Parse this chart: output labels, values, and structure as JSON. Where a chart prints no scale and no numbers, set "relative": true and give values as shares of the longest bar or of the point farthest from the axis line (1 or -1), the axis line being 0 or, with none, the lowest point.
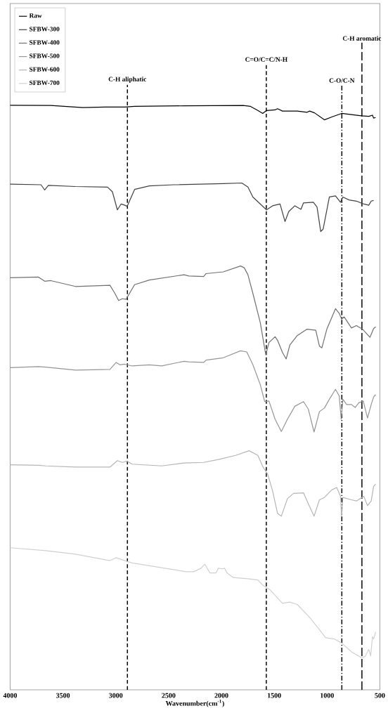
{
  "chart_data": {
    "type": "line",
    "relative": true,
    "xlabel": "Wavenumber(cm$^{-1}$)",
    "xlim": [
      4000,
      500
    ],
    "xticks": [
      4000,
      3500,
      3000,
      2500,
      2000,
      1500,
      1000,
      500
    ],
    "legend": "top left",
    "series": [
      {
        "name": "Raw",
        "color": "#000000",
        "x": [
          4000,
          3615,
          3312,
          3102,
          2915,
          2822,
          2355,
          1795,
          1725,
          1655,
          1609,
          1573,
          1492,
          1469,
          1422,
          1282,
          1189,
          1165,
          1119,
          1025,
          955,
          862,
          769,
          675,
          605,
          570,
          559,
          540
        ],
        "values": [
          1.0,
          0.9996,
          0.996,
          0.997,
          0.997,
          0.998,
          0.999,
          0.9996,
          0.998,
          0.991,
          0.986,
          0.991,
          0.992,
          0.994,
          0.99,
          0.99,
          0.988,
          0.99,
          0.987,
          0.975,
          0.98,
          0.986,
          0.984,
          0.982,
          0.981,
          0.983,
          0.978,
          0.979
        ]
      },
      {
        "name": "SFBW-300",
        "color": "#404040",
        "x": [
          4000,
          3708,
          3673,
          3638,
          3382,
          3078,
          3032,
          2985,
          2950,
          2915,
          2892,
          2822,
          2682,
          2448,
          1982,
          1807,
          1749,
          1702,
          1573,
          1515,
          1445,
          1398,
          1363,
          1305,
          1247,
          1223,
          1130,
          1095,
          1060,
          1037,
          978,
          920,
          873,
          850,
          792,
          722,
          652,
          605,
          582,
          559
        ],
        "values": [
          0.865,
          0.864,
          0.855,
          0.863,
          0.861,
          0.86,
          0.852,
          0.821,
          0.831,
          0.829,
          0.827,
          0.856,
          0.862,
          0.864,
          0.866,
          0.867,
          0.86,
          0.843,
          0.821,
          0.828,
          0.831,
          0.801,
          0.818,
          0.828,
          0.822,
          0.833,
          0.834,
          0.826,
          0.784,
          0.788,
          0.843,
          0.845,
          0.834,
          0.843,
          0.838,
          0.836,
          0.831,
          0.829,
          0.836,
          0.837
        ]
      },
      {
        "name": "SFBW-400",
        "color": "#707070",
        "x": [
          4000,
          3732,
          3673,
          3615,
          3382,
          3055,
          3008,
          2973,
          2938,
          2903,
          2822,
          2682,
          2355,
          2308,
          2168,
          2145,
          1982,
          1819,
          1784,
          1749,
          1702,
          1632,
          1580,
          1550,
          1492,
          1469,
          1422,
          1387,
          1352,
          1282,
          1189,
          1107,
          1072,
          1049,
          1002,
          920,
          885,
          862,
          838,
          769,
          722,
          664,
          594,
          559,
          540
        ],
        "values": [
          0.705,
          0.706,
          0.699,
          0.7,
          0.69,
          0.692,
          0.678,
          0.666,
          0.669,
          0.668,
          0.693,
          0.701,
          0.71,
          0.708,
          0.707,
          0.712,
          0.715,
          0.725,
          0.722,
          0.71,
          0.678,
          0.628,
          0.573,
          0.594,
          0.604,
          0.598,
          0.577,
          0.566,
          0.59,
          0.606,
          0.617,
          0.615,
          0.588,
          0.585,
          0.617,
          0.652,
          0.644,
          0.634,
          0.638,
          0.619,
          0.623,
          0.617,
          0.603,
          0.618,
          0.621
        ]
      },
      {
        "name": "SFBW-500",
        "color": "#959595",
        "x": [
          4000,
          3732,
          3662,
          3382,
          3055,
          2997,
          2962,
          2915,
          2845,
          2682,
          2565,
          2355,
          2308,
          2168,
          2145,
          1982,
          1819,
          1760,
          1702,
          1632,
          1590,
          1550,
          1492,
          1433,
          1375,
          1305,
          1223,
          1177,
          1123,
          1072,
          1025,
          978,
          920,
          885,
          866,
          850,
          815,
          769,
          734,
          699,
          657,
          617,
          582,
          559,
          540
        ],
        "values": [
          0.551,
          0.553,
          0.552,
          0.547,
          0.548,
          0.56,
          0.556,
          0.557,
          0.554,
          0.556,
          0.554,
          0.562,
          0.561,
          0.56,
          0.564,
          0.568,
          0.58,
          0.578,
          0.556,
          0.522,
          0.493,
          0.494,
          0.463,
          0.442,
          0.463,
          0.485,
          0.493,
          0.48,
          0.441,
          0.476,
          0.482,
          0.497,
          0.514,
          0.503,
          0.463,
          0.497,
          0.488,
          0.488,
          0.483,
          0.491,
          0.494,
          0.465,
          0.488,
          0.501,
          0.505
        ]
      },
      {
        "name": "SFBW-600",
        "color": "#b5b5b5",
        "x": [
          4000,
          3732,
          3662,
          3382,
          3055,
          2985,
          2938,
          2892,
          2845,
          2565,
          2355,
          2168,
          2028,
          1865,
          1737,
          1655,
          1609,
          1562,
          1515,
          1469,
          1433,
          1375,
          1317,
          1223,
          1177,
          1123,
          1072,
          1025,
          955,
          908,
          873,
          862,
          850,
          769,
          722,
          687,
          652,
          617,
          582,
          559,
          540
        ],
        "values": [
          0.385,
          0.384,
          0.383,
          0.381,
          0.381,
          0.392,
          0.389,
          0.391,
          0.386,
          0.383,
          0.388,
          0.389,
          0.394,
          0.401,
          0.409,
          0.401,
          0.382,
          0.369,
          0.34,
          0.302,
          0.297,
          0.327,
          0.336,
          0.337,
          0.318,
          0.297,
          0.325,
          0.329,
          0.342,
          0.346,
          0.331,
          0.297,
          0.329,
          0.325,
          0.323,
          0.327,
          0.331,
          0.315,
          0.323,
          0.348,
          0.352
        ]
      },
      {
        "name": "SFBW-700",
        "color": "#d0d0d0",
        "x": [
          4000,
          3662,
          3382,
          3055,
          2997,
          2962,
          2915,
          2845,
          2332,
          2262,
          2192,
          2157,
          2110,
          2052,
          2028,
          1993,
          1970,
          1947,
          1888,
          1749,
          1655,
          1609,
          1539,
          1422,
          1352,
          1282,
          1165,
          1072,
          1013,
          932,
          862,
          769,
          675,
          640,
          605,
          587,
          570,
          559,
          540
        ],
        "values": [
          0.243,
          0.238,
          0.232,
          0.221,
          0.226,
          0.224,
          0.221,
          0.217,
          0.202,
          0.202,
          0.208,
          0.215,
          0.2,
          0.2,
          0.208,
          0.207,
          0.208,
          0.2,
          0.192,
          0.19,
          0.188,
          0.179,
          0.171,
          0.148,
          0.15,
          0.146,
          0.124,
          0.103,
          0.089,
          0.087,
          0.08,
          0.065,
          0.055,
          0.057,
          0.069,
          0.058,
          0.091,
          0.087,
          0.099
        ]
      }
    ],
    "ref_lines": [
      {
        "axis": "x",
        "value": 2890,
        "label": "C-H aliphatic",
        "line_style": "dashed"
      },
      {
        "axis": "x",
        "value": 1575,
        "label": "C=O/C=C/N-H",
        "line_style": "dashed"
      },
      {
        "axis": "x",
        "value": 860,
        "label": "C-O/C-N",
        "line_style": "dashdot"
      },
      {
        "axis": "x",
        "value": 670,
        "label": "C-H aromatic",
        "line_style": "longdash"
      }
    ]
  }
}
